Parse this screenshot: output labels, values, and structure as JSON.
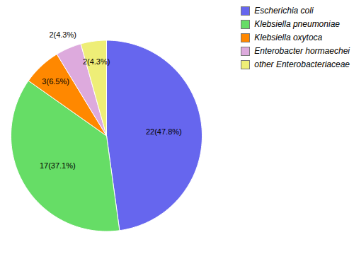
{
  "chart_data": {
    "type": "pie",
    "categories": [
      "Escherichia coli",
      "Klebsiella pneumoniae",
      "Klebsiella oxytoca",
      "Enterobacter hormaechei",
      "other Enterobacteriaceae"
    ],
    "values": [
      22,
      17,
      3,
      2,
      2
    ],
    "value_labels": [
      "22(47.8%)",
      "17(37.1%)",
      "3(6.5%)",
      "2(4.3%)",
      "2(4.3%)"
    ],
    "colors": [
      "#6666ee",
      "#66dd66",
      "#ff8800",
      "#ddaadd",
      "#eeee77"
    ],
    "data_labels": true,
    "legend": "upper right"
  }
}
